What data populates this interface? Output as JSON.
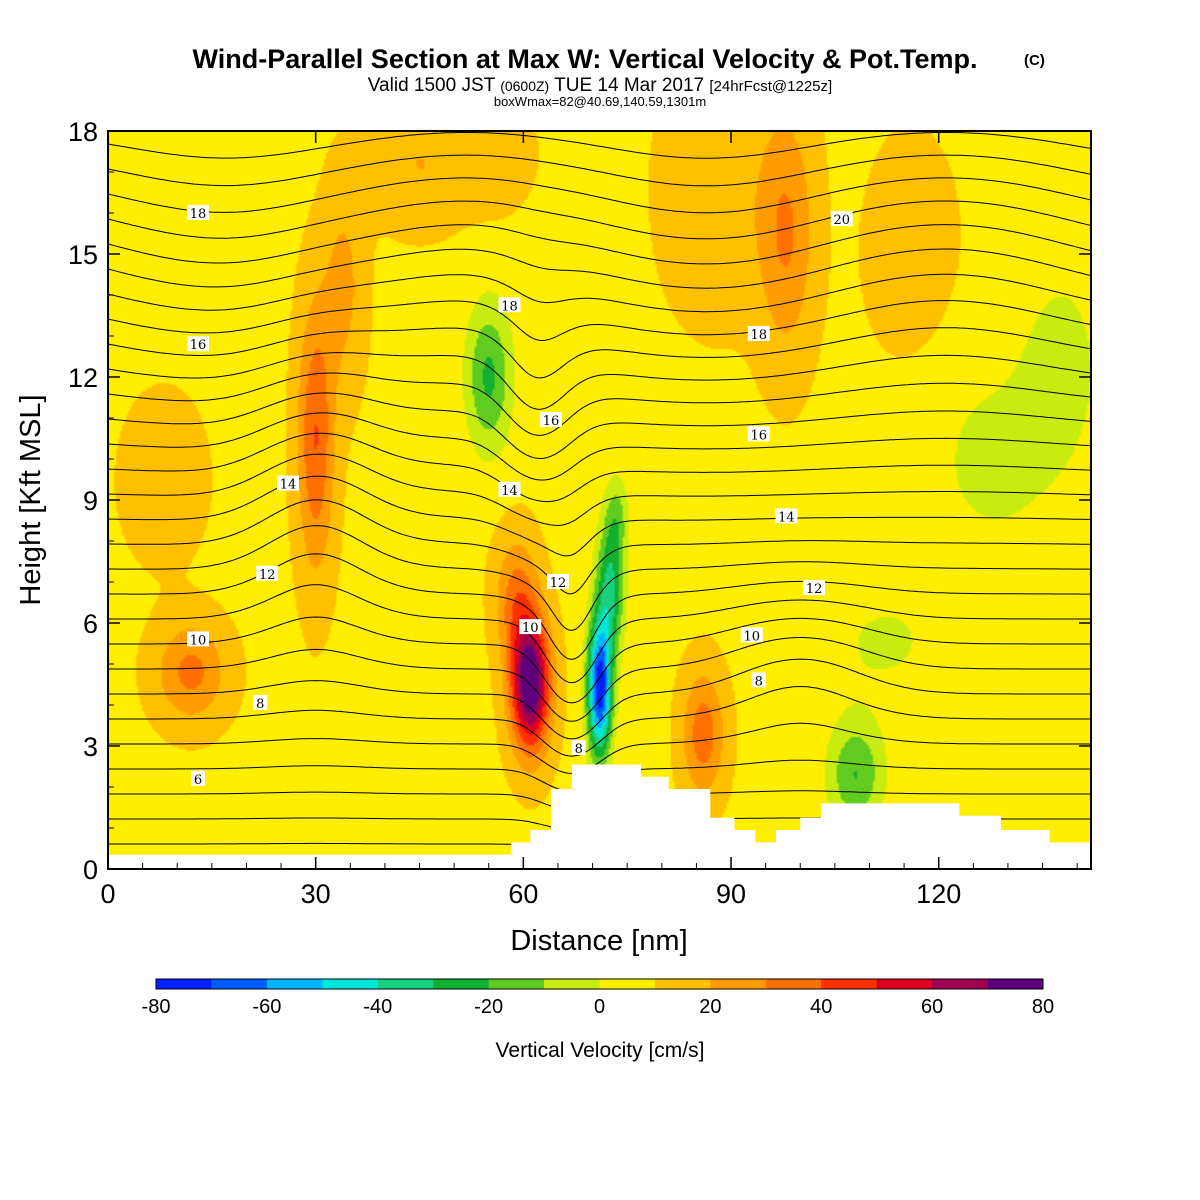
{
  "chart_data": {
    "type": "heatmap",
    "title": "Wind-Parallel Section at Max W: Vertical Velocity & Pot.Temp.",
    "title_mark": "(C)",
    "subtitle": {
      "prefix": "Valid 1500 JST",
      "zulu": "(0600Z)",
      "date": "TUE 14 Mar 2017",
      "forecast": "[24hrFcst@1225z]"
    },
    "box_info": "boxWmax=82@40.69,140.59,1301m",
    "xlabel": "Distance [nm]",
    "ylabel": "Height [Kft MSL]",
    "xlim": [
      0,
      142
    ],
    "ylim": [
      0,
      18
    ],
    "x_ticks": [
      0,
      30,
      60,
      90,
      120
    ],
    "y_ticks": [
      0,
      3,
      6,
      9,
      12,
      15,
      18
    ],
    "colorbar": {
      "label": "Vertical Velocity [cm/s]",
      "levels": [
        -80,
        -70,
        -60,
        -50,
        -40,
        -30,
        -20,
        -10,
        0,
        10,
        20,
        30,
        40,
        50,
        60,
        70,
        80
      ],
      "tick_labels": [
        "-80",
        "-60",
        "-40",
        "-20",
        "0",
        "20",
        "40",
        "60",
        "80"
      ],
      "tick_values": [
        -80,
        -60,
        -40,
        -20,
        0,
        20,
        40,
        60,
        80
      ],
      "colors": [
        "#0020ff",
        "#005cff",
        "#00b4ff",
        "#00e8d8",
        "#18d080",
        "#10b030",
        "#60cc20",
        "#c8ec10",
        "#ffee00",
        "#ffc000",
        "#ff9c00",
        "#ff7000",
        "#ff3000",
        "#e00020",
        "#a00050",
        "#60007c"
      ]
    },
    "background_w": 8,
    "vertical_velocity_features": [
      {
        "x": 12,
        "y": 4.8,
        "sx": 5,
        "sy": 1.2,
        "w": 25
      },
      {
        "x": 30,
        "y": 10.5,
        "sx": 2.6,
        "sy": 3.2,
        "w": 32
      },
      {
        "x": 34,
        "y": 14.2,
        "sx": 3,
        "sy": 2.5,
        "w": 15
      },
      {
        "x": 45,
        "y": 17.2,
        "sx": 7,
        "sy": 1.5,
        "w": 12
      },
      {
        "x": 58,
        "y": 17.2,
        "sx": 6,
        "sy": 1.2,
        "w": 10
      },
      {
        "x": 8,
        "y": 9.5,
        "sx": 6,
        "sy": 2,
        "w": 8
      },
      {
        "x": 61,
        "y": 4.5,
        "sx": 2.8,
        "sy": 1.6,
        "w": 75
      },
      {
        "x": 59,
        "y": 6.6,
        "sx": 3,
        "sy": 1.5,
        "w": 25
      },
      {
        "x": 55,
        "y": 12,
        "sx": 3.3,
        "sy": 1.8,
        "w": -30
      },
      {
        "x": 66,
        "y": 16,
        "sx": 6,
        "sy": 2.5,
        "w": -8
      },
      {
        "x": 71,
        "y": 4.4,
        "sx": 1.7,
        "sy": 1.6,
        "w": -85
      },
      {
        "x": 72.5,
        "y": 6.8,
        "sx": 2,
        "sy": 1.6,
        "w": -40
      },
      {
        "x": 73.5,
        "y": 8.6,
        "sx": 1.7,
        "sy": 1.0,
        "w": -18
      },
      {
        "x": 45,
        "y": 3.3,
        "sx": 4,
        "sy": 1.2,
        "w": -8
      },
      {
        "x": 86,
        "y": 3.3,
        "sx": 3,
        "sy": 1.5,
        "w": 28
      },
      {
        "x": 88,
        "y": 16.5,
        "sx": 8,
        "sy": 3,
        "w": 10
      },
      {
        "x": 98,
        "y": 15.5,
        "sx": 4,
        "sy": 3,
        "w": 22
      },
      {
        "x": 108,
        "y": 2.3,
        "sx": 4,
        "sy": 1.3,
        "w": -28
      },
      {
        "x": 112,
        "y": 5.5,
        "sx": 10,
        "sy": 1.6,
        "w": -9
      },
      {
        "x": 128,
        "y": 10,
        "sx": 12,
        "sy": 3,
        "w": -10
      },
      {
        "x": 138,
        "y": 12.5,
        "sx": 6,
        "sy": 2.5,
        "w": -10
      },
      {
        "x": 116,
        "y": 15,
        "sx": 6,
        "sy": 2.5,
        "w": 10
      },
      {
        "x": 22,
        "y": 17.5,
        "sx": 4,
        "sy": 1,
        "w": -8
      }
    ],
    "potential_temperature": {
      "label_levels": [
        {
          "x": 13,
          "y": 2.2,
          "label": "6"
        },
        {
          "x": 22,
          "y": 4.05,
          "label": "8"
        },
        {
          "x": 13,
          "y": 5.6,
          "label": "10"
        },
        {
          "x": 23,
          "y": 7.2,
          "label": "12"
        },
        {
          "x": 26,
          "y": 9.4,
          "label": "14"
        },
        {
          "x": 13,
          "y": 12.8,
          "label": "16"
        },
        {
          "x": 13,
          "y": 16.0,
          "label": "18"
        },
        {
          "x": 68,
          "y": 2.95,
          "label": "8"
        },
        {
          "x": 61,
          "y": 5.9,
          "label": "10"
        },
        {
          "x": 65,
          "y": 7.0,
          "label": "12"
        },
        {
          "x": 58,
          "y": 9.25,
          "label": "14"
        },
        {
          "x": 64,
          "y": 10.95,
          "label": "16"
        },
        {
          "x": 58,
          "y": 13.75,
          "label": "18"
        },
        {
          "x": 94,
          "y": 4.6,
          "label": "8"
        },
        {
          "x": 93,
          "y": 5.7,
          "label": "10"
        },
        {
          "x": 102,
          "y": 6.85,
          "label": "12"
        },
        {
          "x": 98,
          "y": 8.6,
          "label": "14"
        },
        {
          "x": 94,
          "y": 10.6,
          "label": "16"
        },
        {
          "x": 94,
          "y": 13.05,
          "label": "18"
        },
        {
          "x": 106,
          "y": 15.85,
          "label": "20"
        }
      ]
    },
    "terrain_top": [
      {
        "x": 0,
        "h": 0.35
      },
      {
        "x": 58.2,
        "h": 0.35
      },
      {
        "x": 58.2,
        "h": 0.65
      },
      {
        "x": 61,
        "h": 0.65
      },
      {
        "x": 61,
        "h": 0.95
      },
      {
        "x": 64,
        "h": 0.95
      },
      {
        "x": 64,
        "h": 1.95
      },
      {
        "x": 67,
        "h": 1.95
      },
      {
        "x": 67,
        "h": 2.55
      },
      {
        "x": 77,
        "h": 2.55
      },
      {
        "x": 77,
        "h": 2.25
      },
      {
        "x": 81,
        "h": 2.25
      },
      {
        "x": 81,
        "h": 1.95
      },
      {
        "x": 87,
        "h": 1.95
      },
      {
        "x": 87,
        "h": 1.25
      },
      {
        "x": 90.5,
        "h": 1.25
      },
      {
        "x": 90.5,
        "h": 0.95
      },
      {
        "x": 93.5,
        "h": 0.95
      },
      {
        "x": 93.5,
        "h": 0.65
      },
      {
        "x": 96.5,
        "h": 0.65
      },
      {
        "x": 96.5,
        "h": 0.95
      },
      {
        "x": 100,
        "h": 0.95
      },
      {
        "x": 100,
        "h": 1.25
      },
      {
        "x": 103,
        "h": 1.25
      },
      {
        "x": 103,
        "h": 1.6
      },
      {
        "x": 123,
        "h": 1.6
      },
      {
        "x": 123,
        "h": 1.3
      },
      {
        "x": 129,
        "h": 1.3
      },
      {
        "x": 129,
        "h": 0.95
      },
      {
        "x": 136,
        "h": 0.95
      },
      {
        "x": 136,
        "h": 0.65
      },
      {
        "x": 142,
        "h": 0.65
      }
    ]
  }
}
